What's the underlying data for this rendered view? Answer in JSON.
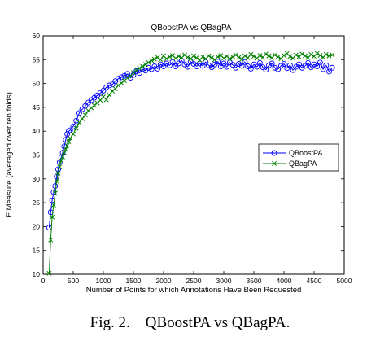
{
  "chart_data": {
    "type": "line",
    "title": "QBoostPA vs QBagPA",
    "xlabel": "Number of Points for which Annotations Have Been Requested",
    "ylabel": "F Measure (averaged over ten folds)",
    "xlim": [
      0,
      5000
    ],
    "ylim": [
      10,
      60
    ],
    "xticks": [
      0,
      500,
      1000,
      1500,
      2000,
      2500,
      3000,
      3500,
      4000,
      4500,
      5000
    ],
    "yticks": [
      10,
      15,
      20,
      25,
      30,
      35,
      40,
      45,
      50,
      55,
      60
    ],
    "grid": false,
    "legend_position": "right",
    "series": [
      {
        "name": "QBoostPA",
        "color": "#0000ff",
        "marker": "circle",
        "x": [
          100,
          125,
          150,
          175,
          200,
          225,
          250,
          275,
          300,
          325,
          350,
          375,
          400,
          425,
          450,
          500,
          550,
          600,
          650,
          700,
          750,
          800,
          850,
          900,
          950,
          1000,
          1050,
          1100,
          1150,
          1200,
          1250,
          1300,
          1350,
          1400,
          1450,
          1500,
          1550,
          1600,
          1650,
          1700,
          1750,
          1800,
          1850,
          1900,
          1950,
          2000,
          2050,
          2100,
          2150,
          2200,
          2250,
          2300,
          2350,
          2400,
          2450,
          2500,
          2550,
          2600,
          2650,
          2700,
          2750,
          2800,
          2850,
          2900,
          2950,
          3000,
          3050,
          3100,
          3150,
          3200,
          3250,
          3300,
          3350,
          3400,
          3450,
          3500,
          3550,
          3600,
          3650,
          3700,
          3750,
          3800,
          3850,
          3900,
          3950,
          4000,
          4050,
          4100,
          4150,
          4200,
          4250,
          4300,
          4350,
          4400,
          4450,
          4500,
          4550,
          4600,
          4650,
          4700,
          4750,
          4800
        ],
        "y": [
          19.8,
          23.0,
          25.5,
          27.2,
          28.5,
          30.5,
          32.0,
          33.5,
          34.5,
          35.5,
          36.8,
          38.2,
          39.4,
          40.0,
          40.2,
          41.0,
          42.2,
          43.8,
          44.6,
          45.3,
          46.0,
          46.5,
          47.0,
          47.5,
          48.0,
          48.5,
          49.2,
          49.6,
          49.8,
          50.5,
          51.0,
          51.3,
          51.6,
          52.0,
          51.2,
          51.8,
          52.6,
          52.2,
          53.0,
          52.7,
          53.3,
          53.0,
          53.6,
          53.1,
          54.0,
          53.6,
          54.2,
          53.8,
          54.5,
          53.6,
          54.2,
          54.8,
          54.0,
          53.5,
          54.6,
          54.1,
          53.6,
          54.2,
          53.7,
          54.5,
          53.8,
          53.4,
          54.0,
          54.6,
          53.6,
          54.2,
          53.5,
          54.4,
          53.9,
          53.3,
          54.1,
          53.7,
          54.5,
          53.6,
          53.1,
          54.0,
          53.5,
          54.3,
          53.4,
          52.9,
          53.8,
          54.2,
          53.3,
          53.0,
          53.7,
          54.1,
          53.2,
          53.8,
          52.8,
          53.5,
          54.0,
          53.3,
          53.7,
          54.3,
          53.4,
          54.0,
          53.6,
          54.4,
          53.0,
          53.8,
          52.5,
          53.3
        ]
      },
      {
        "name": "QBagPA",
        "color": "#008000",
        "marker": "x",
        "x": [
          100,
          125,
          150,
          175,
          200,
          225,
          250,
          275,
          300,
          325,
          350,
          375,
          400,
          425,
          450,
          500,
          550,
          600,
          650,
          700,
          750,
          800,
          850,
          900,
          950,
          1000,
          1050,
          1100,
          1150,
          1200,
          1250,
          1300,
          1350,
          1400,
          1450,
          1500,
          1550,
          1600,
          1650,
          1700,
          1750,
          1800,
          1850,
          1900,
          1950,
          2000,
          2050,
          2100,
          2150,
          2200,
          2250,
          2300,
          2350,
          2400,
          2450,
          2500,
          2550,
          2600,
          2650,
          2700,
          2750,
          2800,
          2850,
          2900,
          2950,
          3000,
          3050,
          3100,
          3150,
          3200,
          3250,
          3300,
          3350,
          3400,
          3450,
          3500,
          3550,
          3600,
          3650,
          3700,
          3750,
          3800,
          3850,
          3900,
          3950,
          4000,
          4050,
          4100,
          4150,
          4200,
          4250,
          4300,
          4350,
          4400,
          4450,
          4500,
          4550,
          4600,
          4650,
          4700,
          4750,
          4800
        ],
        "y": [
          10.2,
          17.2,
          22.0,
          24.5,
          27.0,
          29.5,
          31.2,
          32.5,
          33.8,
          34.6,
          35.5,
          36.2,
          37.0,
          37.8,
          38.5,
          39.4,
          40.6,
          41.8,
          42.6,
          43.4,
          44.3,
          44.9,
          45.4,
          45.9,
          46.5,
          47.2,
          46.6,
          47.6,
          48.4,
          48.9,
          49.6,
          50.1,
          50.6,
          51.2,
          51.6,
          52.3,
          52.8,
          53.2,
          53.6,
          54.0,
          54.4,
          54.8,
          55.1,
          55.5,
          55.0,
          55.8,
          55.2,
          55.6,
          55.9,
          55.3,
          55.7,
          55.4,
          56.0,
          55.5,
          55.2,
          55.8,
          55.4,
          54.9,
          55.6,
          55.2,
          55.8,
          55.4,
          55.0,
          55.6,
          55.9,
          55.3,
          55.7,
          55.2,
          55.6,
          56.0,
          55.5,
          55.1,
          55.8,
          55.4,
          56.1,
          55.7,
          55.3,
          55.9,
          55.5,
          56.2,
          55.8,
          55.4,
          56.0,
          55.6,
          55.2,
          55.9,
          56.3,
          55.7,
          55.3,
          56.0,
          55.6,
          56.2,
          55.8,
          55.4,
          56.1,
          55.7,
          56.3,
          55.9,
          55.5,
          56.1,
          55.8,
          56.0
        ]
      }
    ]
  },
  "caption": {
    "label": "Fig. 2.",
    "text": "QBoostPA vs QBagPA."
  }
}
